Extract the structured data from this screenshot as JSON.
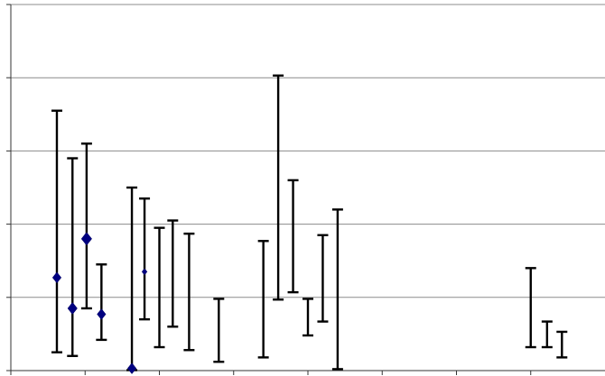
{
  "chart_data": {
    "type": "scatter",
    "title": "",
    "xlabel": "",
    "ylabel": "",
    "ylim": [
      0,
      5
    ],
    "xlim": [
      0,
      8
    ],
    "grid": true,
    "legend": "none",
    "y_gridlines": [
      1,
      2,
      3,
      4,
      5
    ],
    "x_ticks": [
      0,
      1,
      2,
      3,
      4,
      5,
      6,
      7
    ],
    "series": [
      {
        "marker": "diamond",
        "color": "#000080",
        "points": [
          {
            "x": 0.62,
            "lo": 0.25,
            "hi": 3.55,
            "y": 1.27,
            "marker_size": 1.0
          },
          {
            "x": 0.83,
            "lo": 0.2,
            "hi": 2.9,
            "y": 0.85,
            "marker_size": 1.1
          },
          {
            "x": 1.02,
            "lo": 0.85,
            "hi": 3.1,
            "y": 1.8,
            "marker_size": 1.2
          },
          {
            "x": 1.22,
            "lo": 0.42,
            "hi": 1.45,
            "y": 0.77,
            "marker_size": 1.0
          },
          {
            "x": 1.63,
            "lo": 0.0,
            "hi": 2.5,
            "y": 0.03,
            "marker_size": 1.0
          },
          {
            "x": 1.8,
            "lo": 0.7,
            "hi": 2.35,
            "y": 1.35,
            "marker_size": 0.6
          },
          {
            "x": 2.0,
            "lo": 0.32,
            "hi": 1.95,
            "y": null
          },
          {
            "x": 2.18,
            "lo": 0.6,
            "hi": 2.05,
            "y": null
          },
          {
            "x": 2.4,
            "lo": 0.28,
            "hi": 1.87,
            "y": null
          },
          {
            "x": 2.8,
            "lo": 0.12,
            "hi": 0.98,
            "y": null
          },
          {
            "x": 3.4,
            "lo": 0.18,
            "hi": 1.77,
            "y": null
          },
          {
            "x": 3.6,
            "lo": 0.97,
            "hi": 4.03,
            "y": null
          },
          {
            "x": 3.8,
            "lo": 1.07,
            "hi": 2.6,
            "y": null
          },
          {
            "x": 4.0,
            "lo": 0.48,
            "hi": 0.98,
            "y": null
          },
          {
            "x": 4.2,
            "lo": 0.67,
            "hi": 1.85,
            "y": null
          },
          {
            "x": 4.4,
            "lo": 0.02,
            "hi": 2.2,
            "y": null
          },
          {
            "x": 7.0,
            "lo": 0.32,
            "hi": 1.4,
            "y": null
          },
          {
            "x": 7.22,
            "lo": 0.32,
            "hi": 0.67,
            "y": null
          },
          {
            "x": 7.42,
            "lo": 0.18,
            "hi": 0.53,
            "y": null
          }
        ]
      }
    ]
  }
}
